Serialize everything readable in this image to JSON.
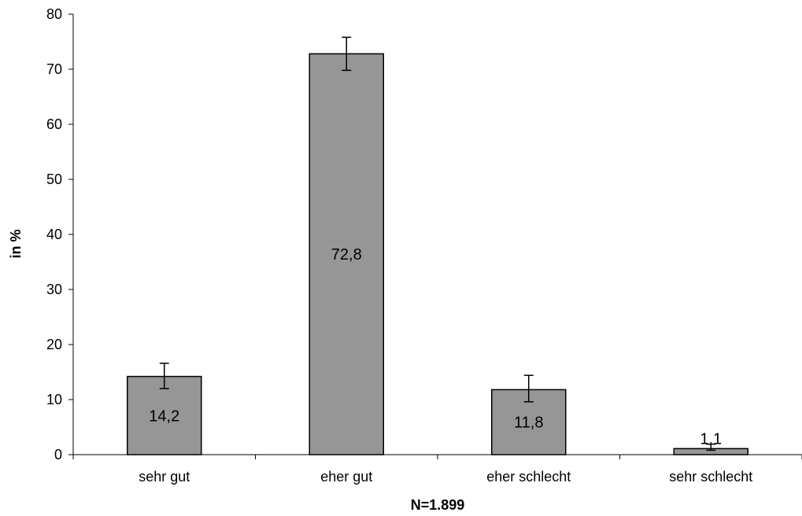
{
  "chart_data": {
    "type": "bar",
    "categories": [
      "sehr gut",
      "eher gut",
      "eher schlecht",
      "sehr schlecht"
    ],
    "values": [
      14.2,
      72.8,
      11.8,
      1.1
    ],
    "value_labels": [
      "14,2",
      "72,8",
      "11,8",
      "1,1"
    ],
    "error_bars": [
      {
        "low": 12.0,
        "high": 16.6
      },
      {
        "low": 69.8,
        "high": 75.8
      },
      {
        "low": 9.6,
        "high": 14.4
      },
      {
        "low": 0.8,
        "high": 1.9
      }
    ],
    "ylabel": "in %",
    "xlabel": "N=1.899",
    "ylim": [
      0,
      80
    ],
    "yticks": [
      0,
      10,
      20,
      30,
      40,
      50,
      60,
      70,
      80
    ],
    "grid": false,
    "legend": "none",
    "bar_color": "#969696",
    "bar_edge_color": "#000000"
  }
}
